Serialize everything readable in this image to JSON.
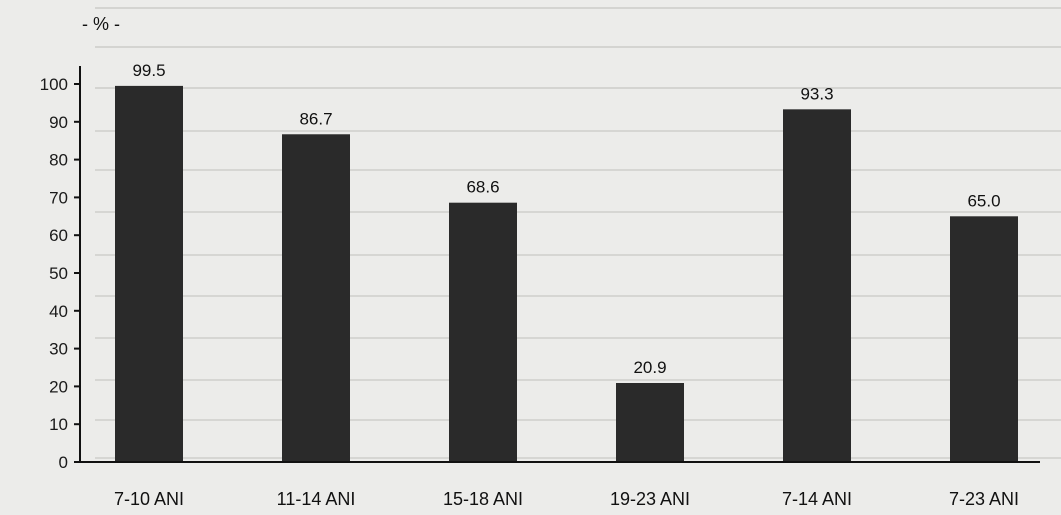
{
  "chart_data": {
    "type": "bar",
    "title": "",
    "unit_label": "- % -",
    "xlabel": "",
    "ylabel": "",
    "categories": [
      "7-10 ANI",
      "11-14 ANI",
      "15-18 ANI",
      "19-23 ANI",
      "7-14 ANI",
      "7-23 ANI"
    ],
    "values": [
      99.5,
      86.7,
      68.6,
      20.9,
      93.3,
      65.0
    ],
    "value_labels": [
      "99.5",
      "86.7",
      "68.6",
      "20.9",
      "93.3",
      "65.0"
    ],
    "ylim": [
      0,
      100
    ],
    "yticks": [
      0,
      10,
      20,
      30,
      40,
      50,
      60,
      70,
      80,
      90,
      100
    ],
    "grid": false,
    "legend": "none",
    "bar_color": "#2a2a2a"
  }
}
